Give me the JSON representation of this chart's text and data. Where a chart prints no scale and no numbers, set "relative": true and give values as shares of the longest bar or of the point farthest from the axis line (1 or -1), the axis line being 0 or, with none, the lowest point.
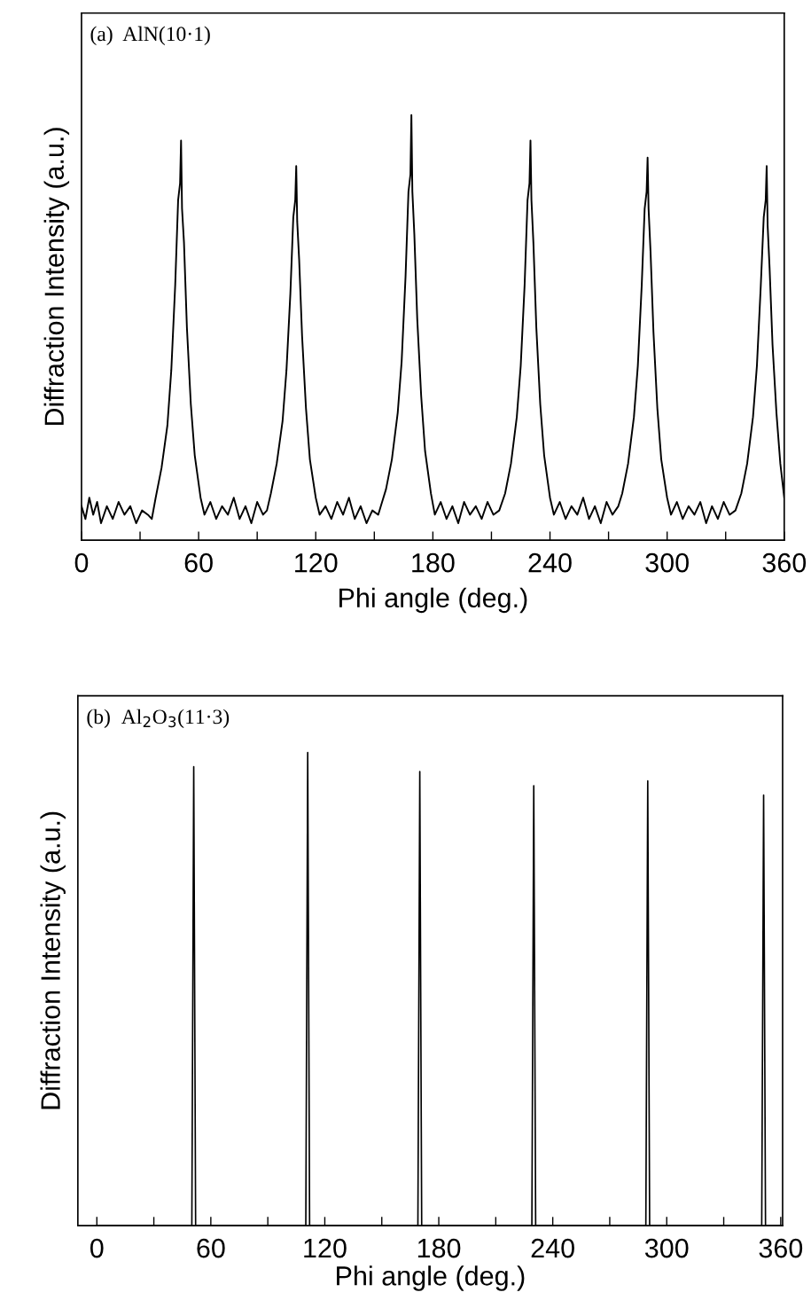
{
  "chart_data": [
    {
      "type": "line",
      "relative": true,
      "xlabel": "Phi angle (deg.)",
      "ylabel": "Diffraction Intensity (a.u.)",
      "annotations": [
        "(a)  AlN(10·1)"
      ],
      "xlim": [
        0,
        360
      ],
      "xticks": [
        0,
        {
          "value": 30,
          "label": null
        },
        60,
        {
          "value": 90,
          "label": null
        },
        120,
        {
          "value": 150,
          "label": null
        },
        180,
        {
          "value": 210,
          "label": null
        },
        240,
        {
          "value": 270,
          "label": null
        },
        300,
        {
          "value": 330,
          "label": null
        },
        360
      ],
      "tick_labels": "x",
      "grid": false,
      "legend": false,
      "series": [
        {
          "color": "#000000",
          "x": [
            0,
            2,
            4,
            6,
            8,
            10,
            13,
            16,
            19,
            22,
            25,
            28,
            31,
            34,
            36,
            38,
            41,
            44,
            46,
            48,
            49.5,
            50.5,
            51,
            51.5,
            52.5,
            54,
            56,
            58,
            61,
            63,
            66,
            69,
            72,
            75,
            78,
            81,
            84,
            87,
            90,
            93,
            95,
            97,
            100,
            103,
            105,
            107,
            108.5,
            109.5,
            110,
            110.5,
            111.5,
            113,
            115,
            117,
            120,
            122,
            125,
            128,
            131,
            134,
            137,
            140,
            143,
            146,
            149,
            152,
            154,
            156,
            159,
            162,
            164,
            166,
            167.5,
            168.5,
            169,
            169.5,
            170.5,
            172,
            174,
            176,
            179,
            181,
            184,
            187,
            190,
            193,
            196,
            199,
            202,
            205,
            208,
            211,
            214,
            217,
            220,
            223,
            225,
            227,
            228.5,
            229.5,
            230,
            230.5,
            231.5,
            233,
            235,
            237,
            240,
            242,
            245,
            248,
            251,
            254,
            257,
            260,
            263,
            266,
            269,
            272,
            275,
            277,
            280,
            283,
            285,
            287,
            288.5,
            289.5,
            290,
            290.5,
            291.5,
            293,
            295,
            297,
            300,
            302,
            305,
            308,
            311,
            314,
            317,
            320,
            323,
            326,
            329,
            332,
            335,
            338,
            341,
            344,
            346,
            348,
            349.5,
            350.5,
            351,
            351.5,
            352.5,
            354,
            356,
            358,
            360
          ],
          "values": [
            0.08,
            0.05,
            0.1,
            0.06,
            0.09,
            0.04,
            0.08,
            0.05,
            0.09,
            0.06,
            0.08,
            0.04,
            0.07,
            0.06,
            0.05,
            0.1,
            0.17,
            0.27,
            0.4,
            0.6,
            0.8,
            0.84,
            0.94,
            0.78,
            0.7,
            0.5,
            0.32,
            0.2,
            0.1,
            0.06,
            0.09,
            0.05,
            0.08,
            0.06,
            0.1,
            0.05,
            0.08,
            0.04,
            0.09,
            0.06,
            0.07,
            0.11,
            0.18,
            0.28,
            0.4,
            0.58,
            0.76,
            0.8,
            0.88,
            0.75,
            0.66,
            0.48,
            0.31,
            0.19,
            0.1,
            0.06,
            0.08,
            0.05,
            0.09,
            0.06,
            0.1,
            0.05,
            0.08,
            0.04,
            0.07,
            0.06,
            0.09,
            0.12,
            0.19,
            0.3,
            0.42,
            0.62,
            0.82,
            0.86,
            1.0,
            0.82,
            0.72,
            0.52,
            0.34,
            0.21,
            0.11,
            0.06,
            0.09,
            0.05,
            0.08,
            0.04,
            0.09,
            0.06,
            0.08,
            0.05,
            0.09,
            0.06,
            0.07,
            0.11,
            0.18,
            0.29,
            0.41,
            0.6,
            0.8,
            0.84,
            0.94,
            0.8,
            0.7,
            0.5,
            0.32,
            0.2,
            0.1,
            0.06,
            0.09,
            0.05,
            0.08,
            0.06,
            0.1,
            0.05,
            0.08,
            0.04,
            0.09,
            0.06,
            0.08,
            0.11,
            0.18,
            0.29,
            0.41,
            0.6,
            0.78,
            0.82,
            0.9,
            0.78,
            0.68,
            0.49,
            0.31,
            0.19,
            0.1,
            0.06,
            0.09,
            0.05,
            0.08,
            0.06,
            0.09,
            0.04,
            0.08,
            0.05,
            0.09,
            0.06,
            0.07,
            0.11,
            0.18,
            0.29,
            0.41,
            0.6,
            0.76,
            0.8,
            0.88,
            0.74,
            0.64,
            0.46,
            0.3,
            0.18,
            0.1
          ]
        }
      ]
    },
    {
      "type": "line",
      "relative": true,
      "xlabel": "Phi angle (deg.)",
      "ylabel": "Diffraction Intensity (a.u.)",
      "annotations": [
        "(b)  Al$_{2}$O$_{3}$(11·3)"
      ],
      "xlim": [
        -10,
        361
      ],
      "xticks": [
        0,
        {
          "value": 30,
          "label": null
        },
        60,
        {
          "value": 90,
          "label": null
        },
        120,
        {
          "value": 150,
          "label": null
        },
        180,
        {
          "value": 210,
          "label": null
        },
        240,
        {
          "value": 270,
          "label": null
        },
        300,
        {
          "value": 330,
          "label": null
        },
        360
      ],
      "tick_labels": "x",
      "grid": false,
      "legend": false,
      "series": [
        {
          "color": "#000000",
          "x": [
            0,
            50,
            51,
            52,
            110,
            111,
            112,
            169,
            170,
            171,
            229,
            230,
            231,
            289,
            290,
            291,
            350,
            351,
            352,
            360
          ],
          "values": [
            0,
            0,
            0.97,
            0,
            0,
            1.0,
            0,
            0,
            0.96,
            0,
            0,
            0.93,
            0,
            0,
            0.94,
            0,
            0,
            0.91,
            0,
            0
          ]
        }
      ]
    }
  ]
}
